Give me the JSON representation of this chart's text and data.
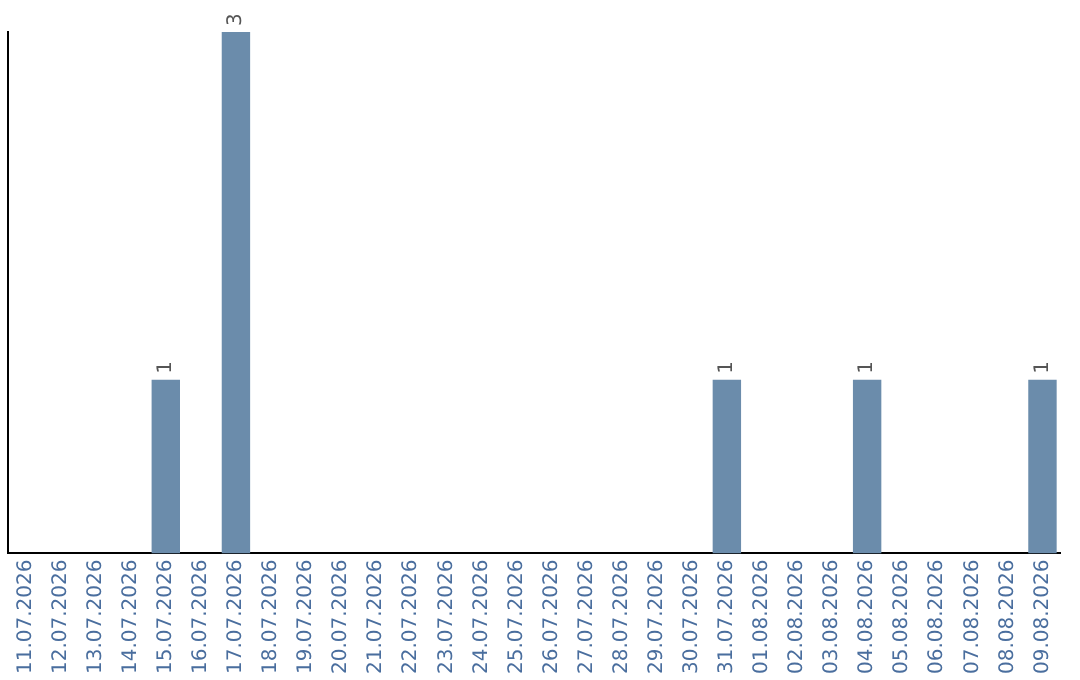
{
  "chart_data": {
    "type": "bar",
    "categories": [
      "11.07.2026",
      "12.07.2026",
      "13.07.2026",
      "14.07.2026",
      "15.07.2026",
      "16.07.2026",
      "17.07.2026",
      "18.07.2026",
      "19.07.2026",
      "20.07.2026",
      "21.07.2026",
      "22.07.2026",
      "23.07.2026",
      "24.07.2026",
      "25.07.2026",
      "26.07.2026",
      "27.07.2026",
      "28.07.2026",
      "29.07.2026",
      "30.07.2026",
      "31.07.2026",
      "01.08.2026",
      "02.08.2026",
      "03.08.2026",
      "04.08.2026",
      "05.08.2026",
      "06.08.2026",
      "07.08.2026",
      "08.08.2026",
      "09.08.2026"
    ],
    "values": [
      null,
      null,
      null,
      null,
      1,
      null,
      3,
      null,
      null,
      null,
      null,
      null,
      null,
      null,
      null,
      null,
      null,
      null,
      null,
      null,
      1,
      null,
      null,
      null,
      1,
      null,
      null,
      null,
      null,
      1
    ],
    "color": "#6b8cab",
    "data_labels": true,
    "grid": false,
    "legend": false,
    "tick_labels": "x"
  }
}
